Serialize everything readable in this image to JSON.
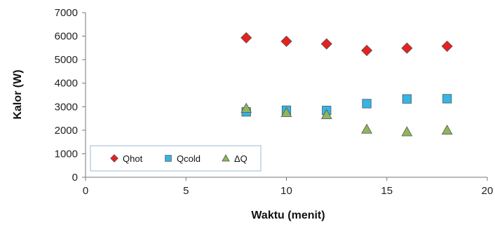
{
  "chart_data": {
    "type": "scatter",
    "title": "",
    "xlabel": "Waktu (menit)",
    "ylabel": "Kalor (W)",
    "xlim": [
      0,
      20
    ],
    "ylim": [
      0,
      7000
    ],
    "xticks": [
      0,
      5,
      10,
      15,
      20
    ],
    "yticks": [
      0,
      1000,
      2000,
      3000,
      4000,
      5000,
      6000,
      7000
    ],
    "grid": false,
    "legend_position": "bottom-left",
    "series": [
      {
        "name": "Qhot",
        "marker": "diamond",
        "color": "#e8201e",
        "x": [
          8,
          10,
          12,
          14,
          16,
          18
        ],
        "y": [
          5930,
          5780,
          5670,
          5390,
          5490,
          5570
        ]
      },
      {
        "name": "Qcold",
        "marker": "square",
        "color": "#33b5e5",
        "x": [
          8,
          10,
          12,
          14,
          16,
          18
        ],
        "y": [
          2780,
          2850,
          2840,
          3130,
          3330,
          3340
        ]
      },
      {
        "name": "ΔQ",
        "marker": "triangle",
        "color": "#8fb55a",
        "x": [
          8,
          10,
          12,
          14,
          16,
          18
        ],
        "y": [
          2930,
          2750,
          2660,
          2040,
          1930,
          2000
        ]
      }
    ]
  }
}
